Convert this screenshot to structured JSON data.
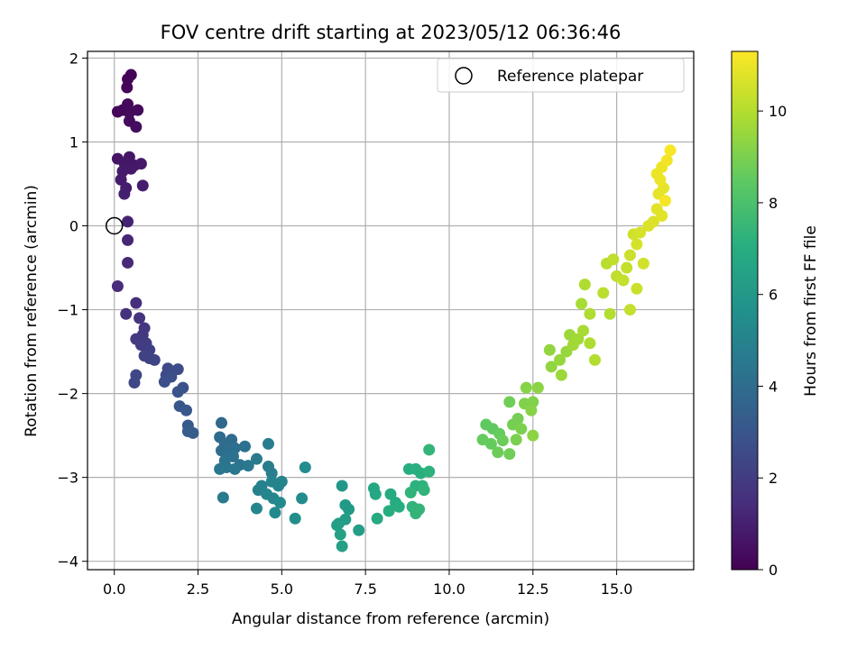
{
  "chart_data": {
    "type": "scatter",
    "title": "FOV centre drift starting at 2023/05/12 06:36:46",
    "xlabel": "Angular distance from reference (arcmin)",
    "ylabel": "Rotation from reference (arcmin)",
    "colorbar_label": "Hours from first FF file",
    "xlim": [
      -0.8,
      17.3
    ],
    "ylim": [
      -4.1,
      2.08
    ],
    "x_ticks": [
      0.0,
      2.5,
      5.0,
      7.5,
      10.0,
      12.5,
      15.0
    ],
    "x_tick_labels": [
      "0.0",
      "2.5",
      "5.0",
      "7.5",
      "10.0",
      "12.5",
      "15.0"
    ],
    "y_ticks": [
      -4,
      -3,
      -2,
      -1,
      0,
      1,
      2
    ],
    "y_tick_labels": [
      "−4",
      "−3",
      "−2",
      "−1",
      "0",
      "1",
      "2"
    ],
    "colorbar_range": [
      0,
      11.3
    ],
    "colorbar_ticks": [
      0,
      2,
      4,
      6,
      8,
      10
    ],
    "colorbar_tick_labels": [
      "0",
      "2",
      "4",
      "6",
      "8",
      "10"
    ],
    "colormap": "viridis",
    "grid": true,
    "legend_position": "top-right",
    "legend": [
      {
        "label": "Reference platepar",
        "marker": "open-circle"
      }
    ],
    "reference_point": {
      "x": 0.0,
      "y": 0.0
    },
    "points": [
      {
        "x": 0.5,
        "y": 1.8,
        "h": 0.1
      },
      {
        "x": 0.4,
        "y": 1.75,
        "h": 0.1
      },
      {
        "x": 0.38,
        "y": 1.65,
        "h": 0.15
      },
      {
        "x": 0.1,
        "y": 1.36,
        "h": 0.2
      },
      {
        "x": 0.25,
        "y": 1.38,
        "h": 0.2
      },
      {
        "x": 0.4,
        "y": 1.45,
        "h": 0.25
      },
      {
        "x": 0.45,
        "y": 1.35,
        "h": 0.3
      },
      {
        "x": 0.7,
        "y": 1.38,
        "h": 0.3
      },
      {
        "x": 0.45,
        "y": 1.25,
        "h": 0.35
      },
      {
        "x": 0.65,
        "y": 1.18,
        "h": 0.4
      },
      {
        "x": 0.1,
        "y": 0.8,
        "h": 0.6
      },
      {
        "x": 0.45,
        "y": 0.82,
        "h": 0.65
      },
      {
        "x": 0.3,
        "y": 0.75,
        "h": 0.7
      },
      {
        "x": 0.6,
        "y": 0.72,
        "h": 0.7
      },
      {
        "x": 0.5,
        "y": 0.68,
        "h": 0.75
      },
      {
        "x": 0.25,
        "y": 0.65,
        "h": 0.8
      },
      {
        "x": 0.8,
        "y": 0.74,
        "h": 0.8
      },
      {
        "x": 0.2,
        "y": 0.55,
        "h": 0.85
      },
      {
        "x": 0.35,
        "y": 0.45,
        "h": 0.9
      },
      {
        "x": 0.85,
        "y": 0.48,
        "h": 0.9
      },
      {
        "x": 0.3,
        "y": 0.38,
        "h": 1.0
      },
      {
        "x": 0.4,
        "y": 0.05,
        "h": 1.1
      },
      {
        "x": 0.4,
        "y": -0.17,
        "h": 1.2
      },
      {
        "x": 0.4,
        "y": -0.44,
        "h": 1.3
      },
      {
        "x": 0.1,
        "y": -0.72,
        "h": 1.4
      },
      {
        "x": 0.65,
        "y": -0.92,
        "h": 1.5
      },
      {
        "x": 0.35,
        "y": -1.05,
        "h": 1.6
      },
      {
        "x": 0.75,
        "y": -1.1,
        "h": 1.7
      },
      {
        "x": 0.9,
        "y": -1.22,
        "h": 1.8
      },
      {
        "x": 0.85,
        "y": -1.3,
        "h": 1.8
      },
      {
        "x": 0.65,
        "y": -1.35,
        "h": 1.9
      },
      {
        "x": 0.95,
        "y": -1.4,
        "h": 2.0
      },
      {
        "x": 0.8,
        "y": -1.42,
        "h": 2.0
      },
      {
        "x": 1.05,
        "y": -1.48,
        "h": 2.1
      },
      {
        "x": 0.9,
        "y": -1.55,
        "h": 2.2
      },
      {
        "x": 1.05,
        "y": -1.58,
        "h": 2.2
      },
      {
        "x": 1.2,
        "y": -1.6,
        "h": 2.3
      },
      {
        "x": 0.65,
        "y": -1.78,
        "h": 2.4
      },
      {
        "x": 0.6,
        "y": -1.87,
        "h": 2.4
      },
      {
        "x": 1.6,
        "y": -1.7,
        "h": 2.5
      },
      {
        "x": 1.9,
        "y": -1.71,
        "h": 2.6
      },
      {
        "x": 1.55,
        "y": -1.78,
        "h": 2.6
      },
      {
        "x": 1.7,
        "y": -1.8,
        "h": 2.7
      },
      {
        "x": 1.5,
        "y": -1.86,
        "h": 2.7
      },
      {
        "x": 2.05,
        "y": -1.93,
        "h": 2.8
      },
      {
        "x": 1.9,
        "y": -1.98,
        "h": 2.9
      },
      {
        "x": 1.95,
        "y": -2.15,
        "h": 3.0
      },
      {
        "x": 2.15,
        "y": -2.2,
        "h": 3.1
      },
      {
        "x": 2.2,
        "y": -2.38,
        "h": 3.2
      },
      {
        "x": 2.2,
        "y": -2.45,
        "h": 3.3
      },
      {
        "x": 2.35,
        "y": -2.47,
        "h": 3.3
      },
      {
        "x": 3.2,
        "y": -2.35,
        "h": 3.8
      },
      {
        "x": 3.15,
        "y": -2.52,
        "h": 3.9
      },
      {
        "x": 3.5,
        "y": -2.55,
        "h": 3.9
      },
      {
        "x": 3.3,
        "y": -2.6,
        "h": 4.0
      },
      {
        "x": 3.2,
        "y": -2.68,
        "h": 4.0
      },
      {
        "x": 3.4,
        "y": -2.7,
        "h": 4.1
      },
      {
        "x": 3.6,
        "y": -2.65,
        "h": 4.1
      },
      {
        "x": 3.9,
        "y": -2.63,
        "h": 4.2
      },
      {
        "x": 3.55,
        "y": -2.75,
        "h": 4.2
      },
      {
        "x": 3.3,
        "y": -2.8,
        "h": 4.3
      },
      {
        "x": 3.75,
        "y": -2.85,
        "h": 4.3
      },
      {
        "x": 3.35,
        "y": -2.88,
        "h": 4.4
      },
      {
        "x": 3.15,
        "y": -2.9,
        "h": 4.4
      },
      {
        "x": 4.0,
        "y": -2.86,
        "h": 4.5
      },
      {
        "x": 3.6,
        "y": -2.9,
        "h": 4.5
      },
      {
        "x": 3.25,
        "y": -3.24,
        "h": 4.6
      },
      {
        "x": 4.25,
        "y": -2.78,
        "h": 4.6
      },
      {
        "x": 4.6,
        "y": -2.6,
        "h": 4.7
      },
      {
        "x": 4.6,
        "y": -2.87,
        "h": 4.8
      },
      {
        "x": 4.7,
        "y": -2.95,
        "h": 4.8
      },
      {
        "x": 4.4,
        "y": -3.1,
        "h": 4.9
      },
      {
        "x": 4.3,
        "y": -3.15,
        "h": 4.9
      },
      {
        "x": 4.7,
        "y": -3.05,
        "h": 5.0
      },
      {
        "x": 4.9,
        "y": -3.1,
        "h": 5.0
      },
      {
        "x": 5.0,
        "y": -3.05,
        "h": 5.1
      },
      {
        "x": 4.55,
        "y": -3.2,
        "h": 5.1
      },
      {
        "x": 4.75,
        "y": -3.25,
        "h": 5.2
      },
      {
        "x": 4.25,
        "y": -3.37,
        "h": 5.2
      },
      {
        "x": 4.95,
        "y": -3.3,
        "h": 5.3
      },
      {
        "x": 4.8,
        "y": -3.42,
        "h": 5.3
      },
      {
        "x": 5.6,
        "y": -3.25,
        "h": 5.4
      },
      {
        "x": 5.7,
        "y": -2.88,
        "h": 5.4
      },
      {
        "x": 5.4,
        "y": -3.49,
        "h": 5.5
      },
      {
        "x": 6.8,
        "y": -3.1,
        "h": 6.0
      },
      {
        "x": 6.9,
        "y": -3.33,
        "h": 6.1
      },
      {
        "x": 7.0,
        "y": -3.38,
        "h": 6.1
      },
      {
        "x": 6.9,
        "y": -3.5,
        "h": 6.2
      },
      {
        "x": 6.7,
        "y": -3.55,
        "h": 6.2
      },
      {
        "x": 6.65,
        "y": -3.57,
        "h": 6.3
      },
      {
        "x": 7.3,
        "y": -3.63,
        "h": 6.3
      },
      {
        "x": 6.75,
        "y": -3.68,
        "h": 6.4
      },
      {
        "x": 6.8,
        "y": -3.82,
        "h": 6.4
      },
      {
        "x": 7.75,
        "y": -3.13,
        "h": 6.7
      },
      {
        "x": 7.8,
        "y": -3.2,
        "h": 6.7
      },
      {
        "x": 7.85,
        "y": -3.49,
        "h": 6.8
      },
      {
        "x": 8.25,
        "y": -3.2,
        "h": 6.9
      },
      {
        "x": 8.4,
        "y": -3.3,
        "h": 6.9
      },
      {
        "x": 8.5,
        "y": -3.35,
        "h": 7.0
      },
      {
        "x": 8.2,
        "y": -3.4,
        "h": 7.0
      },
      {
        "x": 8.8,
        "y": -2.9,
        "h": 7.0
      },
      {
        "x": 9.0,
        "y": -2.9,
        "h": 7.1
      },
      {
        "x": 9.15,
        "y": -2.95,
        "h": 7.1
      },
      {
        "x": 9.4,
        "y": -2.93,
        "h": 7.2
      },
      {
        "x": 9.0,
        "y": -3.1,
        "h": 7.2
      },
      {
        "x": 9.2,
        "y": -3.1,
        "h": 7.2
      },
      {
        "x": 8.85,
        "y": -3.18,
        "h": 7.3
      },
      {
        "x": 9.25,
        "y": -3.15,
        "h": 7.3
      },
      {
        "x": 8.9,
        "y": -3.35,
        "h": 7.3
      },
      {
        "x": 9.1,
        "y": -3.38,
        "h": 7.4
      },
      {
        "x": 9.0,
        "y": -3.43,
        "h": 7.4
      },
      {
        "x": 9.4,
        "y": -2.67,
        "h": 7.4
      },
      {
        "x": 11.1,
        "y": -2.37,
        "h": 8.5
      },
      {
        "x": 11.3,
        "y": -2.42,
        "h": 8.5
      },
      {
        "x": 11.5,
        "y": -2.48,
        "h": 8.6
      },
      {
        "x": 11.0,
        "y": -2.55,
        "h": 8.6
      },
      {
        "x": 11.25,
        "y": -2.6,
        "h": 8.6
      },
      {
        "x": 11.6,
        "y": -2.56,
        "h": 8.7
      },
      {
        "x": 11.45,
        "y": -2.7,
        "h": 8.7
      },
      {
        "x": 11.8,
        "y": -2.72,
        "h": 8.8
      },
      {
        "x": 11.8,
        "y": -2.1,
        "h": 8.8
      },
      {
        "x": 11.9,
        "y": -2.37,
        "h": 8.9
      },
      {
        "x": 12.05,
        "y": -2.3,
        "h": 8.9
      },
      {
        "x": 12.0,
        "y": -2.55,
        "h": 9.0
      },
      {
        "x": 12.15,
        "y": -2.42,
        "h": 9.0
      },
      {
        "x": 12.25,
        "y": -2.12,
        "h": 9.1
      },
      {
        "x": 12.5,
        "y": -2.1,
        "h": 9.1
      },
      {
        "x": 12.45,
        "y": -2.2,
        "h": 9.2
      },
      {
        "x": 12.3,
        "y": -1.93,
        "h": 9.2
      },
      {
        "x": 12.65,
        "y": -1.93,
        "h": 9.3
      },
      {
        "x": 12.5,
        "y": -2.5,
        "h": 9.3
      },
      {
        "x": 13.0,
        "y": -1.48,
        "h": 9.4
      },
      {
        "x": 13.05,
        "y": -1.68,
        "h": 9.4
      },
      {
        "x": 13.3,
        "y": -1.6,
        "h": 9.5
      },
      {
        "x": 13.5,
        "y": -1.5,
        "h": 9.5
      },
      {
        "x": 13.35,
        "y": -1.78,
        "h": 9.6
      },
      {
        "x": 13.6,
        "y": -1.3,
        "h": 9.6
      },
      {
        "x": 13.7,
        "y": -1.42,
        "h": 9.7
      },
      {
        "x": 13.85,
        "y": -1.35,
        "h": 9.7
      },
      {
        "x": 14.0,
        "y": -1.25,
        "h": 9.8
      },
      {
        "x": 13.95,
        "y": -0.93,
        "h": 9.8
      },
      {
        "x": 14.05,
        "y": -0.7,
        "h": 9.9
      },
      {
        "x": 14.2,
        "y": -1.05,
        "h": 9.9
      },
      {
        "x": 14.2,
        "y": -1.4,
        "h": 9.9
      },
      {
        "x": 14.35,
        "y": -1.6,
        "h": 10.0
      },
      {
        "x": 14.8,
        "y": -1.05,
        "h": 10.0
      },
      {
        "x": 14.6,
        "y": -0.8,
        "h": 10.1
      },
      {
        "x": 14.7,
        "y": -0.45,
        "h": 10.1
      },
      {
        "x": 14.9,
        "y": -0.4,
        "h": 10.2
      },
      {
        "x": 15.0,
        "y": -0.6,
        "h": 10.2
      },
      {
        "x": 15.2,
        "y": -0.65,
        "h": 10.3
      },
      {
        "x": 15.3,
        "y": -0.5,
        "h": 10.3
      },
      {
        "x": 15.4,
        "y": -1.0,
        "h": 10.3
      },
      {
        "x": 15.4,
        "y": -0.35,
        "h": 10.4
      },
      {
        "x": 15.6,
        "y": -0.75,
        "h": 10.4
      },
      {
        "x": 15.8,
        "y": -0.45,
        "h": 10.5
      },
      {
        "x": 15.5,
        "y": -0.1,
        "h": 10.5
      },
      {
        "x": 15.7,
        "y": -0.08,
        "h": 10.6
      },
      {
        "x": 15.6,
        "y": -0.22,
        "h": 10.6
      },
      {
        "x": 15.95,
        "y": 0.0,
        "h": 10.7
      },
      {
        "x": 16.1,
        "y": 0.05,
        "h": 10.7
      },
      {
        "x": 16.2,
        "y": 0.2,
        "h": 10.8
      },
      {
        "x": 16.35,
        "y": 0.12,
        "h": 10.8
      },
      {
        "x": 16.25,
        "y": 0.38,
        "h": 10.9
      },
      {
        "x": 16.4,
        "y": 0.45,
        "h": 10.9
      },
      {
        "x": 16.3,
        "y": 0.55,
        "h": 11.0
      },
      {
        "x": 16.35,
        "y": 0.7,
        "h": 11.0
      },
      {
        "x": 16.2,
        "y": 0.62,
        "h": 11.0
      },
      {
        "x": 16.5,
        "y": 0.78,
        "h": 11.1
      },
      {
        "x": 16.6,
        "y": 0.9,
        "h": 11.2
      },
      {
        "x": 16.45,
        "y": 0.3,
        "h": 11.2
      }
    ]
  }
}
